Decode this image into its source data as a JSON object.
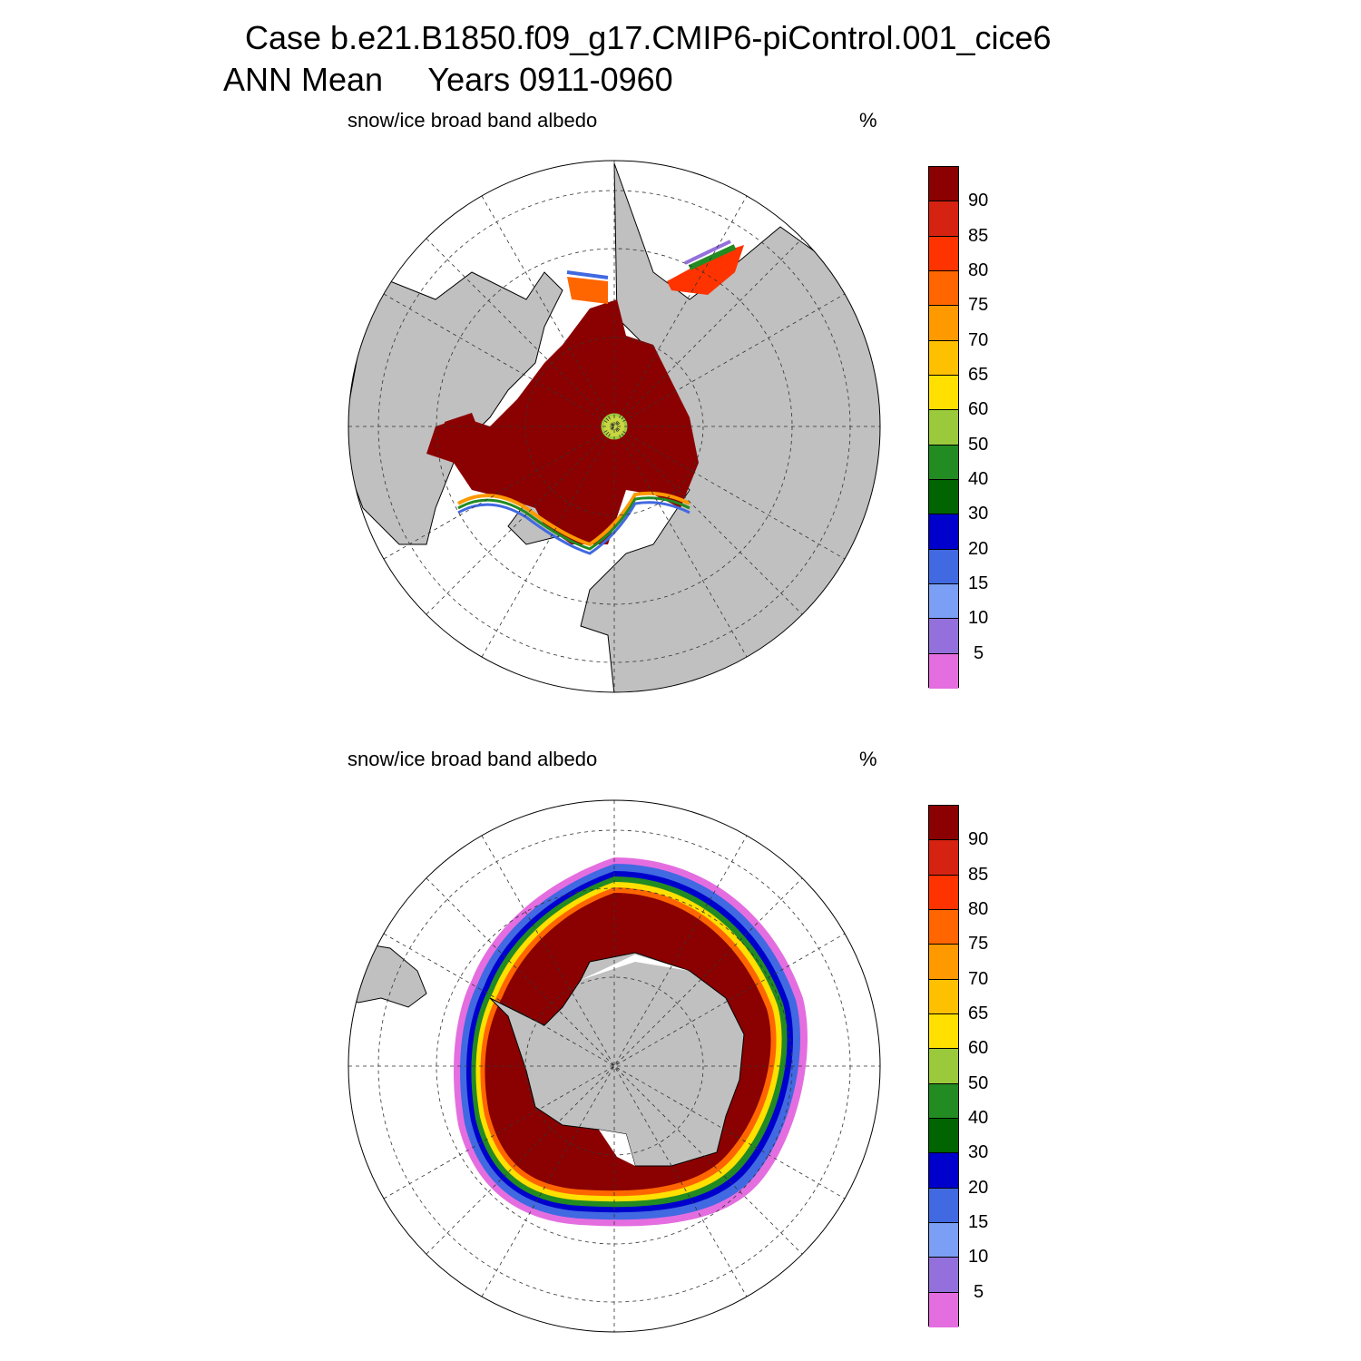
{
  "title_line1": "Case b.e21.B1850.f09_g17.CMIP6-piControl.001_cice6",
  "title_line2": "ANN Mean     Years 0911-0960",
  "panels": [
    {
      "hemisphere": "north",
      "label": "snow/ice broad band albedo",
      "units": "%"
    },
    {
      "hemisphere": "south",
      "label": "snow/ice broad band albedo",
      "units": "%"
    }
  ],
  "colorbar": {
    "tick_labels": [
      "90",
      "85",
      "80",
      "75",
      "70",
      "65",
      "60",
      "50",
      "40",
      "30",
      "20",
      "15",
      "10",
      "5"
    ],
    "colors_top_to_bottom": [
      "#8b0000",
      "#d62210",
      "#ff3300",
      "#ff6600",
      "#ff9900",
      "#ffc000",
      "#ffe000",
      "#9aca3c",
      "#228b22",
      "#006400",
      "#0000cd",
      "#4169e1",
      "#7b9ff5",
      "#9370db",
      "#e46ee0"
    ]
  },
  "colors": {
    "land": "#c0c0c0",
    "ice_core": "#8b0000",
    "background": "#ffffff"
  }
}
